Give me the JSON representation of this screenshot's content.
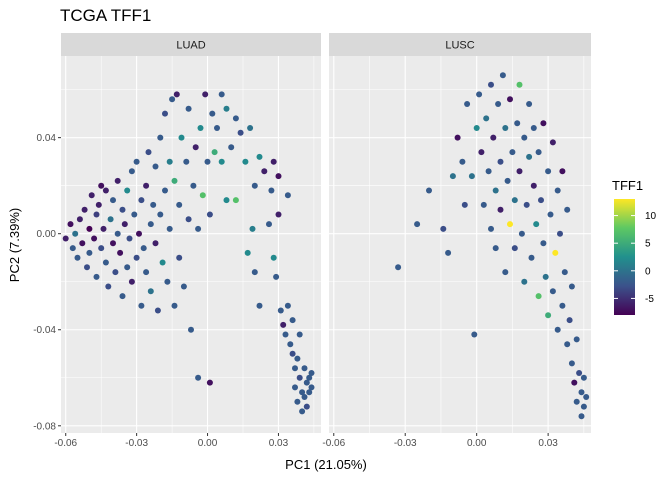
{
  "chart_data": {
    "type": "scatter",
    "title": "TCGA TFF1",
    "xlabel": "PC1 (21.05%)",
    "ylabel": "PC2 (7.39%)",
    "xlim": [
      -0.062,
      0.048
    ],
    "ylim": [
      -0.083,
      0.074
    ],
    "x_ticks": [
      -0.06,
      -0.03,
      0.0,
      0.03
    ],
    "x_tick_labels": [
      "-0.06",
      "-0.03",
      "0.00",
      "0.03"
    ],
    "y_ticks": [
      -0.08,
      -0.04,
      0.0,
      0.04
    ],
    "y_tick_labels": [
      "-0.08",
      "-0.04",
      "0.00",
      "0.04"
    ],
    "grid": true,
    "legend": {
      "title": "TFF1",
      "position": "right",
      "labels": [
        "10",
        "5",
        "0",
        "-5"
      ],
      "values": [
        10,
        5,
        0,
        -5
      ],
      "range": [
        -8,
        13
      ],
      "colors": [
        "#440154",
        "#3b528b",
        "#21908d",
        "#5dc863",
        "#fde725"
      ]
    },
    "facets": [
      {
        "label": "LUAD",
        "points": [
          [
            -0.06,
            -0.002,
            -6
          ],
          [
            -0.058,
            0.004,
            -7
          ],
          [
            -0.057,
            -0.006,
            -2
          ],
          [
            -0.056,
            0.0,
            0
          ],
          [
            -0.055,
            -0.01,
            -2
          ],
          [
            -0.054,
            0.006,
            -6
          ],
          [
            -0.053,
            -0.004,
            -7
          ],
          [
            -0.052,
            0.01,
            -6
          ],
          [
            -0.051,
            -0.014,
            -3
          ],
          [
            -0.05,
            0.002,
            -8
          ],
          [
            -0.05,
            -0.008,
            -2
          ],
          [
            -0.049,
            0.016,
            -6
          ],
          [
            -0.048,
            -0.002,
            -7
          ],
          [
            -0.047,
            0.008,
            -4
          ],
          [
            -0.047,
            -0.018,
            -2
          ],
          [
            -0.046,
            0.012,
            -6
          ],
          [
            -0.045,
            -0.006,
            -3
          ],
          [
            -0.045,
            0.02,
            -7
          ],
          [
            -0.044,
            0.002,
            -6
          ],
          [
            -0.043,
            -0.012,
            -2
          ],
          [
            -0.043,
            0.018,
            -6
          ],
          [
            -0.042,
            -0.022,
            -3
          ],
          [
            -0.041,
            0.006,
            0
          ],
          [
            -0.04,
            -0.004,
            -7
          ],
          [
            -0.04,
            0.014,
            -2
          ],
          [
            -0.039,
            -0.016,
            -3
          ],
          [
            -0.038,
            0.022,
            -6
          ],
          [
            -0.038,
            0.0,
            -2
          ],
          [
            -0.037,
            -0.008,
            -7
          ],
          [
            -0.036,
            0.01,
            -3
          ],
          [
            -0.036,
            -0.026,
            -2
          ],
          [
            -0.035,
            0.004,
            -6
          ],
          [
            -0.034,
            -0.014,
            -2
          ],
          [
            -0.034,
            0.018,
            2
          ],
          [
            -0.033,
            -0.002,
            -3
          ],
          [
            -0.032,
            0.026,
            -2
          ],
          [
            -0.032,
            -0.02,
            -6
          ],
          [
            -0.031,
            0.008,
            -2
          ],
          [
            -0.03,
            -0.01,
            -3
          ],
          [
            -0.03,
            0.03,
            -2
          ],
          [
            -0.029,
            0.0,
            -7
          ],
          [
            -0.028,
            -0.03,
            -2
          ],
          [
            -0.028,
            0.014,
            -3
          ],
          [
            -0.027,
            -0.006,
            -2
          ],
          [
            -0.026,
            0.02,
            -6
          ],
          [
            -0.026,
            -0.016,
            -2
          ],
          [
            -0.025,
            0.034,
            -3
          ],
          [
            -0.024,
            0.004,
            -2
          ],
          [
            -0.024,
            -0.024,
            0
          ],
          [
            -0.023,
            0.012,
            -2
          ],
          [
            -0.022,
            -0.004,
            -6
          ],
          [
            -0.022,
            0.028,
            -2
          ],
          [
            -0.021,
            -0.032,
            -3
          ],
          [
            -0.02,
            0.008,
            -2
          ],
          [
            -0.02,
            0.04,
            -2
          ],
          [
            -0.019,
            -0.012,
            2
          ],
          [
            -0.018,
            0.018,
            -2
          ],
          [
            -0.018,
            0.05,
            -3
          ],
          [
            -0.017,
            -0.02,
            -2
          ],
          [
            -0.016,
            0.03,
            1
          ],
          [
            -0.016,
            0.002,
            -2
          ],
          [
            -0.015,
            0.056,
            -2
          ],
          [
            -0.014,
            -0.03,
            -2
          ],
          [
            -0.014,
            0.022,
            5
          ],
          [
            -0.013,
            0.058,
            -6
          ],
          [
            -0.012,
            0.012,
            -2
          ],
          [
            -0.012,
            -0.01,
            -3
          ],
          [
            -0.011,
            0.04,
            2
          ],
          [
            -0.01,
            -0.022,
            -2
          ],
          [
            -0.009,
            0.03,
            -2
          ],
          [
            -0.008,
            0.006,
            -3
          ],
          [
            -0.008,
            0.052,
            -2
          ],
          [
            -0.007,
            -0.04,
            -2
          ],
          [
            -0.006,
            0.02,
            -2
          ],
          [
            -0.005,
            0.036,
            -6
          ],
          [
            -0.004,
            0.002,
            -2
          ],
          [
            -0.004,
            -0.06,
            -2
          ],
          [
            -0.003,
            0.044,
            2
          ],
          [
            -0.002,
            0.016,
            7
          ],
          [
            -0.001,
            0.058,
            -6
          ],
          [
            0.0,
            0.03,
            -2
          ],
          [
            0.001,
            -0.062,
            -7
          ],
          [
            0.001,
            0.008,
            -3
          ],
          [
            0.002,
            0.05,
            -2
          ],
          [
            0.003,
            0.034,
            5
          ],
          [
            0.004,
            0.044,
            -2
          ],
          [
            0.006,
            0.03,
            2
          ],
          [
            0.006,
            0.058,
            -2
          ],
          [
            0.008,
            0.052,
            1
          ],
          [
            0.008,
            0.014,
            2
          ],
          [
            0.01,
            0.036,
            -2
          ],
          [
            0.012,
            0.048,
            -2
          ],
          [
            0.012,
            0.014,
            7
          ],
          [
            0.014,
            0.042,
            -3
          ],
          [
            0.016,
            0.03,
            2
          ],
          [
            0.017,
            -0.008,
            2
          ],
          [
            0.018,
            0.044,
            0
          ],
          [
            0.019,
            0.002,
            1
          ],
          [
            0.02,
            0.02,
            -2
          ],
          [
            0.02,
            -0.016,
            -2
          ],
          [
            0.022,
            0.032,
            2
          ],
          [
            0.022,
            -0.03,
            -2
          ],
          [
            0.024,
            0.026,
            -6
          ],
          [
            0.026,
            0.004,
            -2
          ],
          [
            0.027,
            0.018,
            -2
          ],
          [
            0.028,
            0.03,
            -6
          ],
          [
            0.028,
            -0.01,
            2
          ],
          [
            0.029,
            -0.018,
            -2
          ],
          [
            0.03,
            0.024,
            -7
          ],
          [
            0.03,
            0.008,
            -6
          ],
          [
            0.031,
            -0.032,
            -2
          ],
          [
            0.032,
            -0.038,
            -6
          ],
          [
            0.033,
            -0.042,
            -2
          ],
          [
            0.034,
            0.016,
            -2
          ],
          [
            0.034,
            -0.03,
            -2
          ],
          [
            0.035,
            -0.046,
            -2
          ],
          [
            0.036,
            -0.05,
            -3
          ],
          [
            0.036,
            -0.036,
            -2
          ],
          [
            0.037,
            -0.056,
            -2
          ],
          [
            0.037,
            -0.064,
            -2
          ],
          [
            0.038,
            -0.052,
            -2
          ],
          [
            0.038,
            -0.07,
            -2
          ],
          [
            0.039,
            -0.06,
            -3
          ],
          [
            0.039,
            -0.042,
            -2
          ],
          [
            0.04,
            -0.066,
            -2
          ],
          [
            0.04,
            -0.074,
            -2
          ],
          [
            0.041,
            -0.056,
            -2
          ],
          [
            0.041,
            -0.068,
            -2
          ],
          [
            0.042,
            -0.062,
            -2
          ],
          [
            0.042,
            -0.072,
            -3
          ],
          [
            0.043,
            -0.06,
            -2
          ],
          [
            0.043,
            -0.066,
            -2
          ],
          [
            0.044,
            -0.058,
            -2
          ],
          [
            0.044,
            -0.064,
            -2
          ]
        ]
      },
      {
        "label": "LUSC",
        "points": [
          [
            -0.033,
            -0.014,
            -2
          ],
          [
            -0.025,
            0.004,
            -2
          ],
          [
            -0.02,
            0.018,
            -2
          ],
          [
            -0.014,
            0.002,
            -3
          ],
          [
            -0.012,
            -0.008,
            -2
          ],
          [
            -0.01,
            0.024,
            0
          ],
          [
            -0.008,
            0.04,
            -7
          ],
          [
            -0.006,
            0.03,
            -2
          ],
          [
            -0.005,
            0.012,
            -3
          ],
          [
            -0.004,
            0.054,
            -2
          ],
          [
            -0.002,
            0.024,
            0
          ],
          [
            -0.001,
            -0.042,
            -2
          ],
          [
            0.0,
            0.044,
            2
          ],
          [
            0.001,
            0.058,
            -2
          ],
          [
            0.002,
            0.034,
            -6
          ],
          [
            0.003,
            0.012,
            -2
          ],
          [
            0.004,
            0.048,
            0
          ],
          [
            0.005,
            0.026,
            -2
          ],
          [
            0.006,
            0.062,
            -3
          ],
          [
            0.006,
            0.002,
            -2
          ],
          [
            0.007,
            0.04,
            -6
          ],
          [
            0.008,
            0.018,
            0
          ],
          [
            0.008,
            -0.006,
            -2
          ],
          [
            0.009,
            0.054,
            -2
          ],
          [
            0.01,
            0.03,
            -3
          ],
          [
            0.01,
            0.01,
            -6
          ],
          [
            0.011,
            0.066,
            -2
          ],
          [
            0.012,
            0.044,
            0
          ],
          [
            0.012,
            -0.016,
            -2
          ],
          [
            0.013,
            0.022,
            -2
          ],
          [
            0.014,
            0.004,
            13
          ],
          [
            0.014,
            0.056,
            -7
          ],
          [
            0.015,
            0.034,
            -2
          ],
          [
            0.016,
            0.014,
            0
          ],
          [
            0.016,
            -0.006,
            -3
          ],
          [
            0.017,
            0.046,
            -2
          ],
          [
            0.018,
            0.062,
            7
          ],
          [
            0.018,
            0.026,
            -6
          ],
          [
            0.019,
            0.0,
            -2
          ],
          [
            0.02,
            0.04,
            -2
          ],
          [
            0.02,
            -0.02,
            0
          ],
          [
            0.021,
            0.012,
            -3
          ],
          [
            0.022,
            0.054,
            -2
          ],
          [
            0.022,
            0.032,
            0
          ],
          [
            0.023,
            -0.01,
            -2
          ],
          [
            0.024,
            0.02,
            -6
          ],
          [
            0.024,
            0.044,
            -2
          ],
          [
            0.025,
            0.004,
            2
          ],
          [
            0.026,
            -0.026,
            7
          ],
          [
            0.026,
            0.034,
            -2
          ],
          [
            0.027,
            0.014,
            -3
          ],
          [
            0.028,
            -0.004,
            -2
          ],
          [
            0.028,
            0.046,
            -7
          ],
          [
            0.029,
            -0.018,
            0
          ],
          [
            0.03,
            0.026,
            -2
          ],
          [
            0.03,
            -0.034,
            5
          ],
          [
            0.031,
            0.008,
            -2
          ],
          [
            0.032,
            -0.024,
            -2
          ],
          [
            0.032,
            0.038,
            -6
          ],
          [
            0.033,
            -0.008,
            13
          ],
          [
            0.034,
            0.018,
            -2
          ],
          [
            0.034,
            -0.04,
            -2
          ],
          [
            0.035,
            0.0,
            -3
          ],
          [
            0.036,
            -0.03,
            -2
          ],
          [
            0.036,
            0.026,
            -7
          ],
          [
            0.037,
            -0.016,
            -2
          ],
          [
            0.038,
            -0.046,
            -2
          ],
          [
            0.038,
            0.01,
            -2
          ],
          [
            0.039,
            -0.036,
            -3
          ],
          [
            0.04,
            -0.054,
            -2
          ],
          [
            0.04,
            -0.022,
            -2
          ],
          [
            0.041,
            -0.062,
            -7
          ],
          [
            0.042,
            -0.044,
            -2
          ],
          [
            0.042,
            -0.07,
            -2
          ],
          [
            0.043,
            -0.058,
            -3
          ],
          [
            0.044,
            -0.066,
            -2
          ],
          [
            0.044,
            -0.076,
            -2
          ],
          [
            0.045,
            -0.06,
            -2
          ],
          [
            0.045,
            -0.072,
            -2
          ],
          [
            0.046,
            -0.068,
            -2
          ]
        ]
      }
    ]
  }
}
